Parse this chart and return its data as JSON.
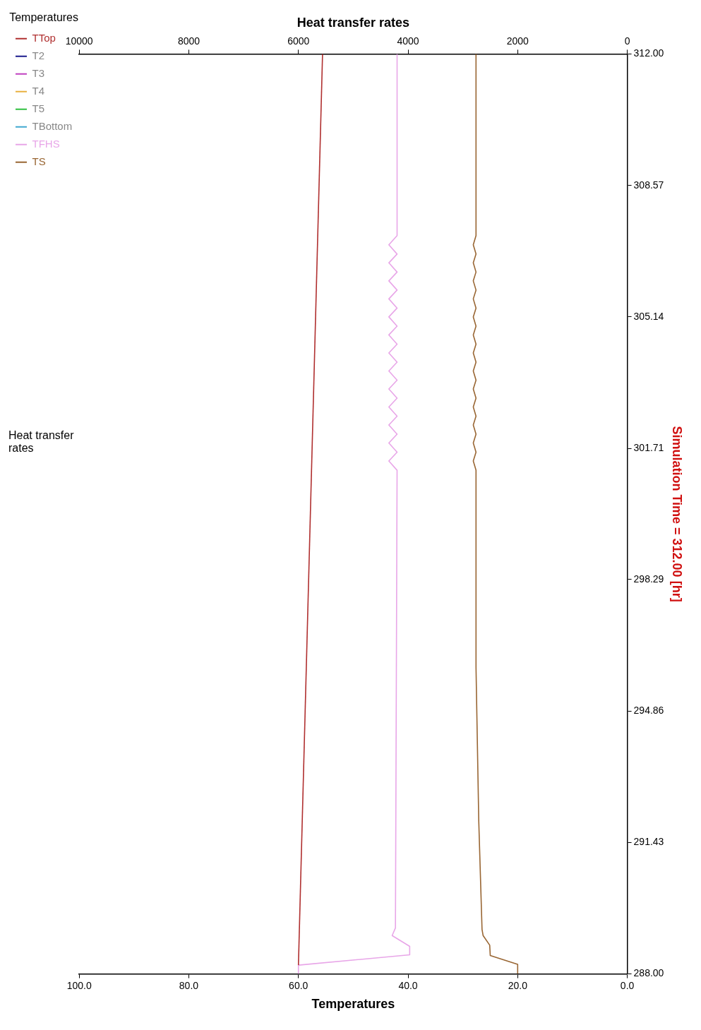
{
  "chart_data": {
    "type": "line",
    "orientation": "horizontal",
    "xlabel": "Temperatures",
    "x2label": "Heat transfer rates",
    "ylabel": "Simulation Time = 312.00 [hr]",
    "legend_title": "Temperatures",
    "legend": "left",
    "grid": false,
    "marker": "none",
    "line_style": "solid",
    "annotations": [
      "Heat transfer rates"
    ],
    "xlim": [
      100,
      0
    ],
    "xticks": [
      {
        "value": 100,
        "label": "100.0"
      },
      {
        "value": 80,
        "label": "80.0"
      },
      {
        "value": 60,
        "label": "60.0"
      },
      {
        "value": 40,
        "label": "40.0"
      },
      {
        "value": 20,
        "label": "20.0"
      },
      {
        "value": 0,
        "label": "0.0"
      }
    ],
    "x2lim": [
      10000,
      0
    ],
    "x2ticks": [
      10000,
      8000,
      6000,
      4000,
      2000,
      0
    ],
    "ylim": [
      288,
      312
    ],
    "yticks": [
      {
        "value": 288,
        "label": "288.00"
      },
      {
        "value": 291.43,
        "label": "291.43"
      },
      {
        "value": 294.86,
        "label": "294.86"
      },
      {
        "value": 298.29,
        "label": "298.29"
      },
      {
        "value": 301.71,
        "label": "301.71"
      },
      {
        "value": 305.14,
        "label": "305.14"
      },
      {
        "value": 308.57,
        "label": "308.57"
      },
      {
        "value": 312,
        "label": "312.00"
      }
    ],
    "series": [
      {
        "name": "TTop",
        "color": "#b03030",
        "x": [
          288.23,
          312
        ],
        "values": [
          60,
          55.6
        ]
      },
      {
        "name": "T2",
        "color": "#1a1a8c"
      },
      {
        "name": "T3",
        "color": "#c040c0"
      },
      {
        "name": "T4",
        "color": "#e8b040"
      },
      {
        "name": "T5",
        "color": "#30c040"
      },
      {
        "name": "TBottom",
        "color": "#40a8d0"
      },
      {
        "name": "TFHS",
        "color": "#e8a6e8",
        "x": [
          288,
          288.23,
          288.5,
          288.72,
          289,
          289.2,
          301.14,
          301.38,
          301.61,
          301.85,
          302.08,
          302.32,
          302.55,
          302.79,
          303.02,
          303.26,
          303.49,
          303.73,
          303.96,
          304.2,
          304.43,
          304.67,
          304.9,
          305.14,
          305.37,
          305.61,
          305.84,
          306.08,
          306.31,
          306.55,
          306.78,
          307.02,
          307.26,
          312
        ],
        "values": [
          60,
          60,
          39.7,
          39.7,
          42.9,
          42.3,
          42.0,
          43.5,
          42.0,
          43.5,
          42.0,
          43.5,
          42.0,
          43.5,
          42.0,
          43.5,
          42.0,
          43.5,
          42.0,
          43.5,
          42.0,
          43.5,
          42.0,
          43.5,
          42.0,
          43.5,
          42.0,
          43.5,
          42.0,
          43.5,
          42.0,
          43.5,
          42.0,
          42.0
        ]
      },
      {
        "name": "TS",
        "color": "#996633",
        "x": [
          288,
          288.25,
          288.48,
          288.75,
          289,
          289.16,
          292,
          296,
          301.14,
          301.38,
          301.61,
          301.85,
          302.08,
          302.32,
          302.55,
          302.79,
          303.02,
          303.26,
          303.49,
          303.73,
          303.96,
          304.2,
          304.43,
          304.67,
          304.9,
          305.14,
          305.37,
          305.61,
          305.84,
          306.08,
          306.31,
          306.55,
          306.78,
          307.02,
          307.26,
          312
        ],
        "values": [
          20,
          20,
          25,
          25.1,
          26.3,
          26.5,
          27.1,
          27.6,
          27.6,
          28.1,
          27.6,
          28.1,
          27.6,
          28.1,
          27.6,
          28.1,
          27.6,
          28.1,
          27.6,
          28.1,
          27.6,
          28.1,
          27.6,
          28.1,
          27.6,
          28.1,
          27.6,
          28.1,
          27.6,
          28.1,
          27.6,
          28.1,
          27.6,
          28.1,
          27.6,
          27.6
        ]
      }
    ]
  }
}
